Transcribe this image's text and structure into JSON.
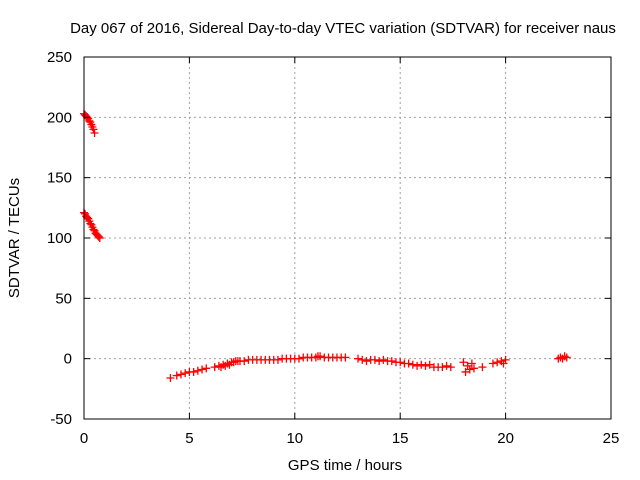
{
  "chart_data": {
    "type": "scatter",
    "title": "Day 067 of 2016, Sidereal Day-to-day VTEC variation (SDTVAR) for receiver naus",
    "xlabel": "GPS time / hours",
    "ylabel": "SDTVAR / TECUs",
    "xlim": [
      0,
      25
    ],
    "ylim": [
      -50,
      250
    ],
    "xticks": [
      0,
      5,
      10,
      15,
      20,
      25
    ],
    "yticks": [
      -50,
      0,
      50,
      100,
      150,
      200,
      250
    ],
    "grid": true,
    "marker": "+",
    "series": [
      {
        "name": "SDTVAR",
        "color": "#ff0000",
        "points": [
          [
            0.0,
            203
          ],
          [
            0.05,
            202
          ],
          [
            0.1,
            201
          ],
          [
            0.15,
            200
          ],
          [
            0.2,
            199
          ],
          [
            0.25,
            197
          ],
          [
            0.3,
            196
          ],
          [
            0.35,
            194
          ],
          [
            0.4,
            192
          ],
          [
            0.45,
            190
          ],
          [
            0.5,
            187
          ],
          [
            0.0,
            121
          ],
          [
            0.05,
            120
          ],
          [
            0.1,
            118
          ],
          [
            0.15,
            117
          ],
          [
            0.2,
            116
          ],
          [
            0.25,
            114
          ],
          [
            0.3,
            112
          ],
          [
            0.35,
            111
          ],
          [
            0.4,
            109
          ],
          [
            0.45,
            107
          ],
          [
            0.5,
            106
          ],
          [
            0.55,
            104
          ],
          [
            0.6,
            103
          ],
          [
            0.65,
            102
          ],
          [
            0.7,
            101
          ],
          [
            0.75,
            100
          ],
          [
            4.1,
            -16
          ],
          [
            4.4,
            -14
          ],
          [
            4.6,
            -13
          ],
          [
            4.8,
            -12
          ],
          [
            5.0,
            -11
          ],
          [
            5.2,
            -11
          ],
          [
            5.4,
            -10
          ],
          [
            5.6,
            -9
          ],
          [
            5.8,
            -8
          ],
          [
            6.2,
            -7
          ],
          [
            6.4,
            -6
          ],
          [
            6.5,
            -7
          ],
          [
            6.6,
            -5
          ],
          [
            6.7,
            -6
          ],
          [
            6.8,
            -4
          ],
          [
            6.9,
            -5
          ],
          [
            7.0,
            -3
          ],
          [
            7.1,
            -3
          ],
          [
            7.2,
            -2
          ],
          [
            7.3,
            -2
          ],
          [
            7.4,
            -2
          ],
          [
            7.6,
            -2
          ],
          [
            7.8,
            -1
          ],
          [
            8.0,
            -1
          ],
          [
            8.2,
            -1
          ],
          [
            8.4,
            -1
          ],
          [
            8.6,
            -1
          ],
          [
            8.8,
            -1
          ],
          [
            9.0,
            -1
          ],
          [
            9.2,
            -1
          ],
          [
            9.4,
            0
          ],
          [
            9.6,
            0
          ],
          [
            9.8,
            0
          ],
          [
            10.0,
            0
          ],
          [
            10.2,
            0
          ],
          [
            10.4,
            1
          ],
          [
            10.6,
            1
          ],
          [
            10.8,
            1
          ],
          [
            11.0,
            1
          ],
          [
            11.1,
            2
          ],
          [
            11.2,
            2
          ],
          [
            11.4,
            1
          ],
          [
            11.6,
            1
          ],
          [
            11.8,
            1
          ],
          [
            12.0,
            1
          ],
          [
            12.2,
            1
          ],
          [
            12.4,
            1
          ],
          [
            13.0,
            0
          ],
          [
            13.2,
            -1
          ],
          [
            13.4,
            -2
          ],
          [
            13.6,
            -1
          ],
          [
            13.8,
            -1
          ],
          [
            14.0,
            -2
          ],
          [
            14.2,
            -1
          ],
          [
            14.4,
            -2
          ],
          [
            14.6,
            -2
          ],
          [
            14.8,
            -3
          ],
          [
            15.0,
            -3
          ],
          [
            15.2,
            -4
          ],
          [
            15.4,
            -4
          ],
          [
            15.6,
            -5
          ],
          [
            15.8,
            -6
          ],
          [
            16.0,
            -5
          ],
          [
            16.2,
            -6
          ],
          [
            16.4,
            -5
          ],
          [
            16.6,
            -7
          ],
          [
            16.8,
            -7
          ],
          [
            17.0,
            -7
          ],
          [
            17.2,
            -6
          ],
          [
            17.4,
            -7
          ],
          [
            18.0,
            -3
          ],
          [
            18.1,
            -11
          ],
          [
            18.2,
            -6
          ],
          [
            18.3,
            -9
          ],
          [
            18.4,
            -4
          ],
          [
            18.5,
            -8
          ],
          [
            18.9,
            -7
          ],
          [
            19.4,
            -4
          ],
          [
            19.6,
            -3
          ],
          [
            19.8,
            -2
          ],
          [
            19.9,
            -4
          ],
          [
            20.0,
            -1
          ],
          [
            22.5,
            0
          ],
          [
            22.6,
            1
          ],
          [
            22.7,
            0
          ],
          [
            22.8,
            2
          ],
          [
            22.9,
            1
          ]
        ]
      }
    ]
  }
}
